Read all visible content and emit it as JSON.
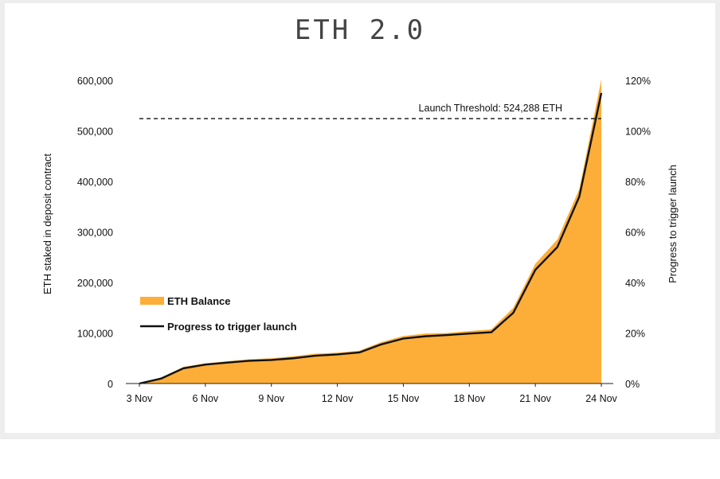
{
  "title": "ETH 2.0",
  "colors": {
    "area": "#FDAE38",
    "line": "#111111",
    "threshold": "#111111"
  },
  "chart_data": {
    "type": "area",
    "title": "ETH 2.0",
    "ylabel": "ETH staked in deposit contract",
    "y2label": "Progress to trigger launch",
    "ylim": [
      0,
      600000
    ],
    "y2lim": [
      0,
      120
    ],
    "yticks": [
      "0",
      "100,000",
      "200,000",
      "300,000",
      "400,000",
      "500,000",
      "600,000"
    ],
    "y2ticks": [
      "0%",
      "20%",
      "40%",
      "60%",
      "80%",
      "100%",
      "120%"
    ],
    "xticks": [
      "3 Nov",
      "6 Nov",
      "9 Nov",
      "12 Nov",
      "15 Nov",
      "18 Nov",
      "21 Nov",
      "24 Nov"
    ],
    "x": [
      3,
      4,
      5,
      6,
      7,
      8,
      9,
      10,
      11,
      12,
      13,
      14,
      15,
      16,
      17,
      18,
      19,
      20,
      21,
      22,
      23,
      24
    ],
    "series": [
      {
        "name": "ETH Balance",
        "kind": "area",
        "axis": "left",
        "values": [
          0,
          12000,
          33000,
          40000,
          44000,
          48000,
          50000,
          54000,
          59000,
          61000,
          65000,
          82000,
          94000,
          99000,
          100000,
          104000,
          107000,
          150000,
          237000,
          285000,
          385000,
          602000
        ]
      },
      {
        "name": "Progress to trigger launch",
        "kind": "line",
        "axis": "right",
        "values": [
          0,
          2.0,
          6.0,
          7.5,
          8.3,
          9.0,
          9.3,
          10.0,
          11.0,
          11.5,
          12.3,
          15.5,
          17.8,
          18.7,
          19.2,
          19.8,
          20.3,
          28.0,
          45.0,
          54.0,
          74.0,
          115.0
        ]
      }
    ],
    "threshold": {
      "value": 524288,
      "label": "Launch Threshold: 524,288 ETH"
    },
    "legend": "left-center",
    "grid": false
  }
}
